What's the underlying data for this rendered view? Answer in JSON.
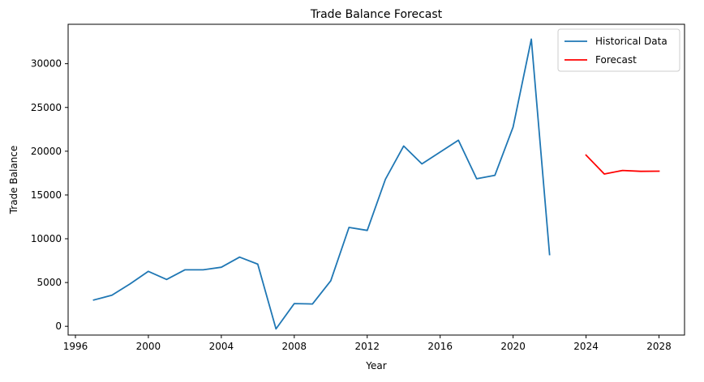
{
  "chart_data": {
    "type": "line",
    "title": "Trade Balance Forecast",
    "xlabel": "Year",
    "ylabel": "Trade Balance",
    "xlim": [
      1995.6,
      2029.4
    ],
    "ylim": [
      -1000,
      34500
    ],
    "xticks": [
      1996,
      2000,
      2004,
      2008,
      2012,
      2016,
      2020,
      2024,
      2028
    ],
    "yticks": [
      0,
      5000,
      10000,
      15000,
      20000,
      25000,
      30000
    ],
    "grid": false,
    "legend_position": "top-right",
    "series": [
      {
        "name": "Historical Data",
        "color": "#1f77b4",
        "x": [
          1997,
          1998,
          1999,
          2000,
          2001,
          2002,
          2003,
          2004,
          2005,
          2006,
          2007,
          2008,
          2009,
          2010,
          2011,
          2012,
          2013,
          2014,
          2015,
          2016,
          2017,
          2018,
          2019,
          2020,
          2021,
          2022
        ],
        "y": [
          3000,
          3550,
          4850,
          6280,
          5350,
          6450,
          6450,
          6750,
          7900,
          7100,
          -300,
          2600,
          2550,
          5200,
          11300,
          10950,
          16800,
          20600,
          18550,
          19900,
          21250,
          16850,
          17250,
          22750,
          32800,
          8200
        ]
      },
      {
        "name": "Forecast",
        "color": "#ff0000",
        "x": [
          2024,
          2025,
          2026,
          2027,
          2028
        ],
        "y": [
          19550,
          17400,
          17800,
          17700,
          17720
        ]
      }
    ]
  }
}
